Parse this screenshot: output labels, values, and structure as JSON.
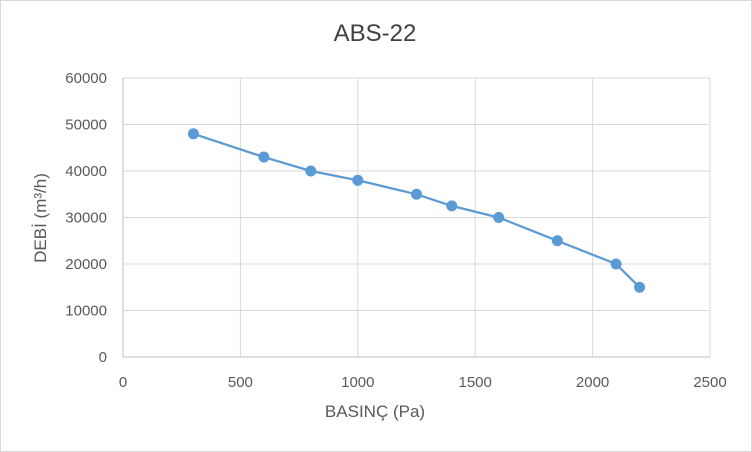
{
  "chart_data": {
    "type": "scatter",
    "title": "ABS-22",
    "xlabel": "BASINÇ (Pa)",
    "ylabel": "DEBİ (m³/h)",
    "xlim": [
      0,
      2500
    ],
    "ylim": [
      0,
      60000
    ],
    "x_ticks": [
      0,
      500,
      1000,
      1500,
      2000,
      2500
    ],
    "y_ticks": [
      0,
      10000,
      20000,
      30000,
      40000,
      50000,
      60000
    ],
    "grid": true,
    "legend": "none",
    "series": [
      {
        "x": [
          300,
          600,
          800,
          1000,
          1250,
          1400,
          1600,
          1850,
          2100,
          2200
        ],
        "y": [
          48000,
          43000,
          40000,
          38000,
          35000,
          32500,
          30000,
          25000,
          20000,
          15000
        ],
        "color": "#5b9bd5",
        "marker": "circle",
        "line": "straight"
      }
    ],
    "colors": {
      "grid": "#d9d9d9",
      "axis": "#bfbfbf",
      "text": "#595959",
      "title": "#404040"
    }
  }
}
